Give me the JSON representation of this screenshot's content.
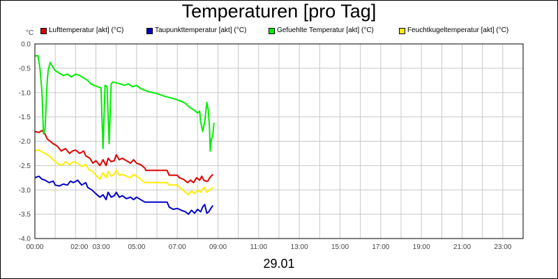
{
  "title": "Temperaturen [pro Tag]",
  "date_label": "29.01",
  "chart_data": {
    "type": "line",
    "title": "Temperaturen [pro Tag]",
    "xlabel": "29.01",
    "ylabel": "°C",
    "x_unit": "hours since 00:00",
    "xlim": [
      0,
      24
    ],
    "ylim": [
      -4.0,
      0.0
    ],
    "y_ticks": [
      0.0,
      -0.5,
      -1.0,
      -1.5,
      -2.0,
      -2.5,
      -3.0,
      -3.5,
      -4.0
    ],
    "y_tick_labels": [
      "0.0",
      "-0.5",
      "-1.0",
      "-1.5",
      "-2.0",
      "-2.5",
      "-3.0",
      "-3.5",
      "-4.0"
    ],
    "x_tick_labels": [
      {
        "x": 0,
        "label": "00:00"
      },
      {
        "x": 2,
        "label": "02:00"
      },
      {
        "x": 3,
        "label": "03:00"
      },
      {
        "x": 5,
        "label": "05:00"
      },
      {
        "x": 7,
        "label": "07:00"
      },
      {
        "x": 9,
        "label": "09:00"
      },
      {
        "x": 11,
        "label": "11:00"
      },
      {
        "x": 13,
        "label": "13:00"
      },
      {
        "x": 15,
        "label": "15:00"
      },
      {
        "x": 17,
        "label": "17:00"
      },
      {
        "x": 19,
        "label": "19:00"
      },
      {
        "x": 21,
        "label": "21:00"
      },
      {
        "x": 23,
        "label": "23:00"
      }
    ],
    "grid": true,
    "legend_position": "top",
    "series": [
      {
        "name": "Lufttemperatur [akt] (°C)",
        "color": "#dd0000",
        "points": [
          [
            0.0,
            -1.8
          ],
          [
            0.2,
            -1.82
          ],
          [
            0.35,
            -1.78
          ],
          [
            0.5,
            -1.85
          ],
          [
            0.6,
            -1.95
          ],
          [
            0.75,
            -2.0
          ],
          [
            0.9,
            -2.05
          ],
          [
            1.1,
            -2.1
          ],
          [
            1.3,
            -2.2
          ],
          [
            1.5,
            -2.15
          ],
          [
            1.7,
            -2.25
          ],
          [
            1.85,
            -2.2
          ],
          [
            2.0,
            -2.18
          ],
          [
            2.2,
            -2.25
          ],
          [
            2.4,
            -2.2
          ],
          [
            2.5,
            -2.3
          ],
          [
            2.7,
            -2.35
          ],
          [
            2.85,
            -2.45
          ],
          [
            3.0,
            -2.4
          ],
          [
            3.2,
            -2.5
          ],
          [
            3.35,
            -2.38
          ],
          [
            3.5,
            -2.5
          ],
          [
            3.6,
            -2.35
          ],
          [
            3.75,
            -2.42
          ],
          [
            3.9,
            -2.4
          ],
          [
            4.0,
            -2.28
          ],
          [
            4.15,
            -2.38
          ],
          [
            4.3,
            -2.35
          ],
          [
            4.5,
            -2.4
          ],
          [
            4.7,
            -2.45
          ],
          [
            4.85,
            -2.38
          ],
          [
            5.0,
            -2.45
          ],
          [
            5.2,
            -2.48
          ],
          [
            5.4,
            -2.55
          ],
          [
            5.45,
            -2.6
          ],
          [
            6.5,
            -2.6
          ],
          [
            6.6,
            -2.7
          ],
          [
            7.0,
            -2.7
          ],
          [
            7.1,
            -2.75
          ],
          [
            7.3,
            -2.78
          ],
          [
            7.5,
            -2.85
          ],
          [
            7.65,
            -2.8
          ],
          [
            7.8,
            -2.85
          ],
          [
            7.95,
            -2.75
          ],
          [
            8.1,
            -2.8
          ],
          [
            8.2,
            -2.72
          ],
          [
            8.3,
            -2.8
          ],
          [
            8.4,
            -2.82
          ],
          [
            8.5,
            -2.82
          ],
          [
            8.6,
            -2.75
          ],
          [
            8.75,
            -2.68
          ]
        ]
      },
      {
        "name": "Taupunkttemperatur [akt] (°C)",
        "color": "#0000cc",
        "points": [
          [
            0.0,
            -2.75
          ],
          [
            0.2,
            -2.72
          ],
          [
            0.35,
            -2.78
          ],
          [
            0.5,
            -2.8
          ],
          [
            0.7,
            -2.85
          ],
          [
            0.9,
            -2.82
          ],
          [
            1.0,
            -2.9
          ],
          [
            1.2,
            -2.92
          ],
          [
            1.4,
            -2.88
          ],
          [
            1.6,
            -2.9
          ],
          [
            1.75,
            -2.82
          ],
          [
            1.9,
            -2.85
          ],
          [
            2.1,
            -2.8
          ],
          [
            2.3,
            -2.9
          ],
          [
            2.5,
            -2.85
          ],
          [
            2.6,
            -2.95
          ],
          [
            2.8,
            -3.0
          ],
          [
            3.0,
            -3.08
          ],
          [
            3.2,
            -3.15
          ],
          [
            3.35,
            -3.1
          ],
          [
            3.5,
            -3.2
          ],
          [
            3.6,
            -3.05
          ],
          [
            3.75,
            -3.15
          ],
          [
            3.9,
            -3.12
          ],
          [
            4.0,
            -3.05
          ],
          [
            4.15,
            -3.15
          ],
          [
            4.3,
            -3.12
          ],
          [
            4.5,
            -3.18
          ],
          [
            4.7,
            -3.15
          ],
          [
            4.85,
            -3.2
          ],
          [
            5.0,
            -3.15
          ],
          [
            5.2,
            -3.2
          ],
          [
            5.4,
            -3.25
          ],
          [
            6.5,
            -3.25
          ],
          [
            6.6,
            -3.35
          ],
          [
            6.8,
            -3.4
          ],
          [
            7.0,
            -3.38
          ],
          [
            7.2,
            -3.42
          ],
          [
            7.4,
            -3.45
          ],
          [
            7.55,
            -3.5
          ],
          [
            7.7,
            -3.42
          ],
          [
            7.85,
            -3.48
          ],
          [
            8.0,
            -3.4
          ],
          [
            8.15,
            -3.45
          ],
          [
            8.25,
            -3.35
          ],
          [
            8.35,
            -3.3
          ],
          [
            8.45,
            -3.48
          ],
          [
            8.55,
            -3.45
          ],
          [
            8.65,
            -3.38
          ],
          [
            8.75,
            -3.32
          ]
        ]
      },
      {
        "name": "Gefuehlte Temperatur [akt] (°C)",
        "color": "#00ee00",
        "points": [
          [
            0.0,
            -0.25
          ],
          [
            0.15,
            -0.24
          ],
          [
            0.25,
            -0.5
          ],
          [
            0.35,
            -1.0
          ],
          [
            0.42,
            -1.85
          ],
          [
            0.5,
            -1.75
          ],
          [
            0.6,
            -0.8
          ],
          [
            0.65,
            -0.55
          ],
          [
            0.75,
            -0.38
          ],
          [
            0.85,
            -0.45
          ],
          [
            1.0,
            -0.55
          ],
          [
            1.2,
            -0.6
          ],
          [
            1.4,
            -0.65
          ],
          [
            1.6,
            -0.62
          ],
          [
            1.8,
            -0.68
          ],
          [
            2.0,
            -0.62
          ],
          [
            2.2,
            -0.65
          ],
          [
            2.4,
            -0.7
          ],
          [
            2.6,
            -0.75
          ],
          [
            2.75,
            -0.82
          ],
          [
            2.9,
            -0.85
          ],
          [
            3.1,
            -0.88
          ],
          [
            3.25,
            -0.9
          ],
          [
            3.35,
            -2.15
          ],
          [
            3.45,
            -0.85
          ],
          [
            3.55,
            -0.88
          ],
          [
            3.65,
            -2.05
          ],
          [
            3.75,
            -0.82
          ],
          [
            3.85,
            -0.78
          ],
          [
            4.0,
            -0.8
          ],
          [
            4.2,
            -0.82
          ],
          [
            4.4,
            -0.85
          ],
          [
            4.6,
            -0.82
          ],
          [
            4.8,
            -0.88
          ],
          [
            5.0,
            -0.85
          ],
          [
            5.2,
            -0.92
          ],
          [
            5.4,
            -0.95
          ],
          [
            5.6,
            -0.98
          ],
          [
            5.8,
            -1.0
          ],
          [
            6.0,
            -1.02
          ],
          [
            6.2,
            -1.05
          ],
          [
            6.4,
            -1.08
          ],
          [
            6.6,
            -1.1
          ],
          [
            6.8,
            -1.12
          ],
          [
            7.0,
            -1.15
          ],
          [
            7.2,
            -1.18
          ],
          [
            7.4,
            -1.22
          ],
          [
            7.6,
            -1.3
          ],
          [
            7.8,
            -1.35
          ],
          [
            8.0,
            -1.42
          ],
          [
            8.1,
            -1.38
          ],
          [
            8.15,
            -1.6
          ],
          [
            8.25,
            -1.8
          ],
          [
            8.35,
            -1.6
          ],
          [
            8.45,
            -1.2
          ],
          [
            8.52,
            -1.35
          ],
          [
            8.58,
            -1.7
          ],
          [
            8.62,
            -2.2
          ],
          [
            8.68,
            -1.95
          ],
          [
            8.75,
            -1.88
          ],
          [
            8.8,
            -1.62
          ]
        ]
      },
      {
        "name": "Feuchtkugeltemperatur [akt] (°C)",
        "color": "#ffee00",
        "points": [
          [
            0.0,
            -2.2
          ],
          [
            0.2,
            -2.18
          ],
          [
            0.35,
            -2.22
          ],
          [
            0.5,
            -2.25
          ],
          [
            0.7,
            -2.3
          ],
          [
            0.9,
            -2.38
          ],
          [
            1.1,
            -2.45
          ],
          [
            1.3,
            -2.5
          ],
          [
            1.5,
            -2.42
          ],
          [
            1.7,
            -2.48
          ],
          [
            1.9,
            -2.42
          ],
          [
            2.1,
            -2.45
          ],
          [
            2.3,
            -2.52
          ],
          [
            2.5,
            -2.48
          ],
          [
            2.65,
            -2.58
          ],
          [
            2.85,
            -2.62
          ],
          [
            3.0,
            -2.7
          ],
          [
            3.2,
            -2.78
          ],
          [
            3.35,
            -2.65
          ],
          [
            3.5,
            -2.75
          ],
          [
            3.6,
            -2.62
          ],
          [
            3.75,
            -2.72
          ],
          [
            3.9,
            -2.68
          ],
          [
            4.0,
            -2.6
          ],
          [
            4.15,
            -2.7
          ],
          [
            4.3,
            -2.68
          ],
          [
            4.5,
            -2.72
          ],
          [
            4.7,
            -2.75
          ],
          [
            4.85,
            -2.68
          ],
          [
            5.0,
            -2.72
          ],
          [
            5.2,
            -2.78
          ],
          [
            5.4,
            -2.85
          ],
          [
            6.5,
            -2.85
          ],
          [
            6.6,
            -2.9
          ],
          [
            7.0,
            -2.9
          ],
          [
            7.2,
            -2.98
          ],
          [
            7.4,
            -3.05
          ],
          [
            7.55,
            -3.1
          ],
          [
            7.7,
            -3.02
          ],
          [
            7.85,
            -3.08
          ],
          [
            8.0,
            -3.0
          ],
          [
            8.15,
            -3.05
          ],
          [
            8.25,
            -2.98
          ],
          [
            8.35,
            -2.95
          ],
          [
            8.45,
            -3.05
          ],
          [
            8.55,
            -3.02
          ],
          [
            8.65,
            -2.98
          ],
          [
            8.75,
            -2.95
          ]
        ]
      }
    ]
  }
}
